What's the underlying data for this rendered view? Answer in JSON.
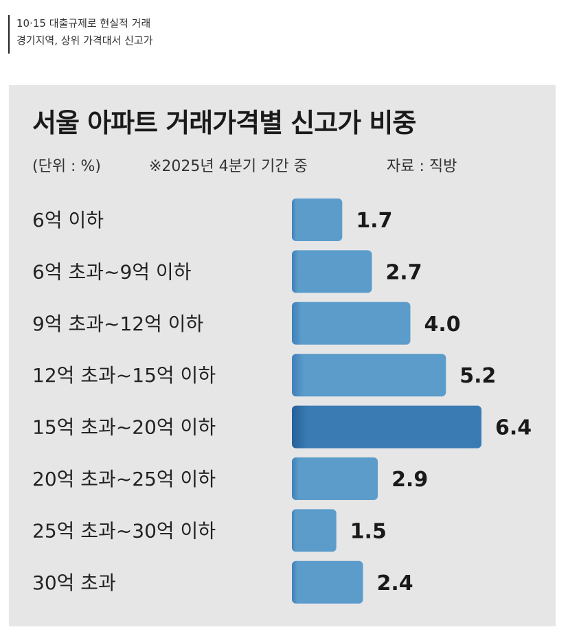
{
  "caption": {
    "line1": "10·15 대출규제로 현실적 거래",
    "line2": "경기지역, 상위 가격대서 신고가"
  },
  "header": {
    "title": "서울 아파트 거래가격별 신고가 비중",
    "unit": "(단위 : %)",
    "period": "※2025년 4분기 기간 중",
    "source": "자료 : 직방"
  },
  "colors": {
    "bar": "#5b9ccb",
    "bar_highlight": "#3b7bb4",
    "panel": "#e6e6e7"
  },
  "chart_data": {
    "type": "bar",
    "orientation": "horizontal",
    "title": "서울 아파트 거래가격별 신고가 비중",
    "categories": [
      "6억 이하",
      "6억 초과~9억 이하",
      "9억 초과~12억 이하",
      "12억 초과~15억 이하",
      "15억 초과~20억 이하",
      "20억 초과~25억 이하",
      "25억 초과~30억 이하",
      "30억 초과"
    ],
    "values": [
      1.7,
      2.7,
      4.0,
      5.2,
      6.4,
      2.9,
      1.5,
      2.4
    ],
    "value_labels": [
      "1.7",
      "2.7",
      "4.0",
      "5.2",
      "6.4",
      "2.9",
      "1.5",
      "2.4"
    ],
    "highlight_index": 4,
    "xlim": [
      0,
      6.4
    ],
    "grid": false,
    "legend": "none"
  }
}
